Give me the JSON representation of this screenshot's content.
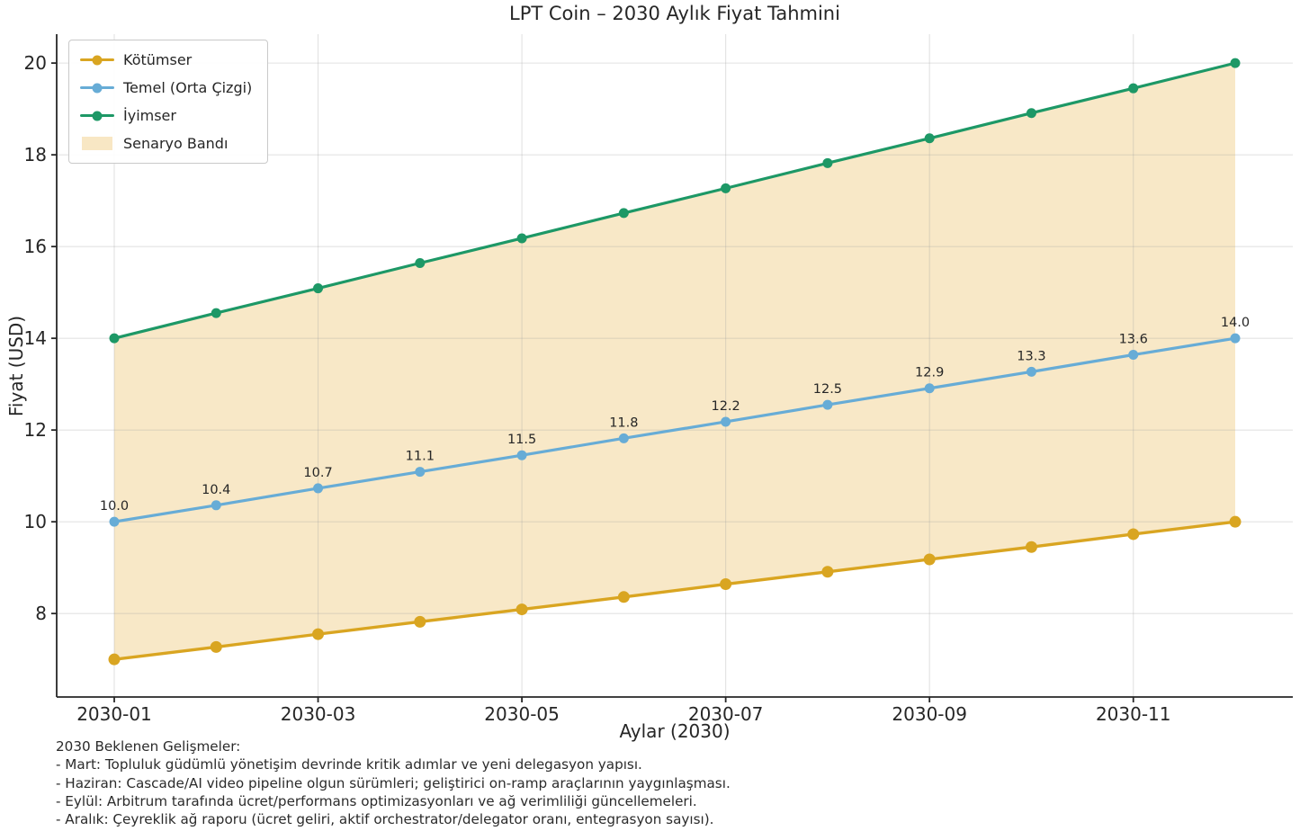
{
  "title": "LPT Coin – 2030 Aylık Fiyat Tahmini",
  "colors": {
    "pessimistic": "#D9A521",
    "base": "#67ACD6",
    "optimistic": "#1D9866",
    "band": "#F8E7C4",
    "grid": "#9E9E9E",
    "axis": "#262626",
    "text": "#262626",
    "background": "#FFFFFF"
  },
  "legend": {
    "items": [
      {
        "label": "Kötümser",
        "swatch": "line-marker",
        "color_key": "pessimistic"
      },
      {
        "label": "Temel (Orta Çizgi)",
        "swatch": "line-marker",
        "color_key": "base"
      },
      {
        "label": "İyimser",
        "swatch": "line-marker",
        "color_key": "optimistic"
      },
      {
        "label": "Senaryo Bandı",
        "swatch": "patch",
        "color_key": "band"
      }
    ]
  },
  "chart_data": {
    "type": "line",
    "title": "LPT Coin – 2030 Aylık Fiyat Tahmini",
    "xlabel": "Aylar (2030)",
    "ylabel": "Fiyat (USD)",
    "x": [
      "2030-01",
      "2030-02",
      "2030-03",
      "2030-04",
      "2030-05",
      "2030-06",
      "2030-07",
      "2030-08",
      "2030-09",
      "2030-10",
      "2030-11",
      "2030-12"
    ],
    "x_tick_indices": [
      0,
      2,
      4,
      6,
      8,
      10
    ],
    "x_tick_labels": [
      "2030-01",
      "2030-03",
      "2030-05",
      "2030-07",
      "2030-09",
      "2030-11"
    ],
    "yticks": [
      8,
      10,
      12,
      14,
      16,
      18,
      20
    ],
    "ylim": [
      6.18,
      20.63
    ],
    "grid": true,
    "legend_position": "upper left",
    "band_series": {
      "name": "Senaryo Bandı",
      "lower": "Kötümser",
      "upper": "İyimser"
    },
    "series": [
      {
        "name": "Kötümser",
        "color_key": "pessimistic",
        "values": [
          7.0,
          7.27,
          7.55,
          7.82,
          8.09,
          8.36,
          8.64,
          8.91,
          9.18,
          9.45,
          9.73,
          10.0
        ]
      },
      {
        "name": "Temel (Orta Çizgi)",
        "color_key": "base",
        "values": [
          10.0,
          10.36,
          10.73,
          11.09,
          11.45,
          11.82,
          12.18,
          12.55,
          12.91,
          13.27,
          13.64,
          14.0
        ],
        "point_labels": [
          "10.0",
          "10.4",
          "10.7",
          "11.1",
          "11.5",
          "11.8",
          "12.2",
          "12.5",
          "12.9",
          "13.3",
          "13.6",
          "14.0"
        ]
      },
      {
        "name": "İyimser",
        "color_key": "optimistic",
        "values": [
          14.0,
          14.55,
          15.09,
          15.64,
          16.18,
          16.73,
          17.27,
          17.82,
          18.36,
          18.91,
          19.45,
          20.0
        ]
      }
    ]
  },
  "footer": {
    "heading": "2030 Beklenen Gelişmeler:",
    "lines": [
      "- Mart: Topluluk güdümlü yönetişim devrinde kritik adımlar ve yeni delegasyon yapısı.",
      "- Haziran: Cascade/AI video pipeline olgun sürümleri; geliştirici on-ramp araçlarının yaygınlaşması.",
      "- Eylül: Arbitrum tarafında ücret/performans optimizasyonları ve ağ verimliliği güncellemeleri.",
      "- Aralık: Çeyreklik ağ raporu (ücret geliri, aktif orchestrator/delegator oranı, entegrasyon sayısı)."
    ]
  }
}
